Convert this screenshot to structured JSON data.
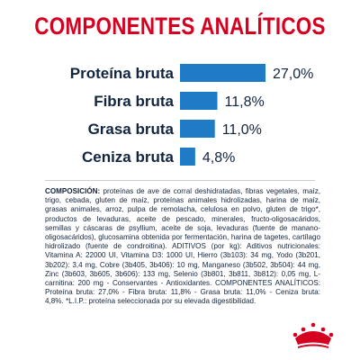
{
  "title": "COMPONENTES ANALÍTICOS",
  "chart_data": {
    "type": "bar",
    "orientation": "horizontal",
    "categories": [
      "Proteína bruta",
      "Fibra bruta",
      "Grasa bruta",
      "Ceniza bruta"
    ],
    "values": [
      27.0,
      11.8,
      11.0,
      4.8
    ],
    "value_labels": [
      "27,0%",
      "11,8%",
      "11,0%",
      "4,8%"
    ],
    "xlim": [
      0,
      27.0
    ],
    "grid": false,
    "bar_color": "#1f7bc6"
  },
  "composition": {
    "heading": "COMPOSICIÓN:",
    "text": "proteínas de ave de corral deshidratadas, fibras vegetales, maíz, trigo, cebada, gluten de maíz, proteínas animales hidrolizadas, harina de maíz, grasas animales, arroz, pulpa de remolacha, celulosa en polvo, gluten de trigo*, productos de levaduras, aceite de pescado, minerales, fructo-oligosacáridos, semillas y cáscaras de psyllium, aceite de soja, levaduras (fuente de manano-oligosacáridos), glucosamina obtenida por fermentación, harina de tagetes, cartílago hidrolizado (fuente de condroitina). ADITIVOS (por kg): Aditivos nutricionales: Vitamina A: 22000 UI, Vitamina D3: 1000 UI, Hierro (3b103): 34 mg, Yodo (3b201, 3b202): 3,4 mg, Cobre (3b405, 3b406): 10 mg, Manganeso (3b502, 3b504): 44 mg, Zinc (3b603, 3b605, 3b606): 133 mg, Selenio (3b801, 3b811, 3b812): 0,05 mg, L-carnitina: 200 mg - Conservantes - Antioxidantes. COMPONENTES ANALÍTICOS: Proteína bruta: 27,0% - Fibra bruta: 11,8% - Grasa bruta: 11,0% - Ceniza bruta: 4,8%. *L.I.P.: proteína seleccionada por su elevada digestibilidad."
  },
  "colors": {
    "title": "#d5001f",
    "text": "#12253f",
    "bar": "#1f7bc6",
    "logo": "#d5001f"
  },
  "logo": {
    "icon": "crown-logo-icon"
  }
}
